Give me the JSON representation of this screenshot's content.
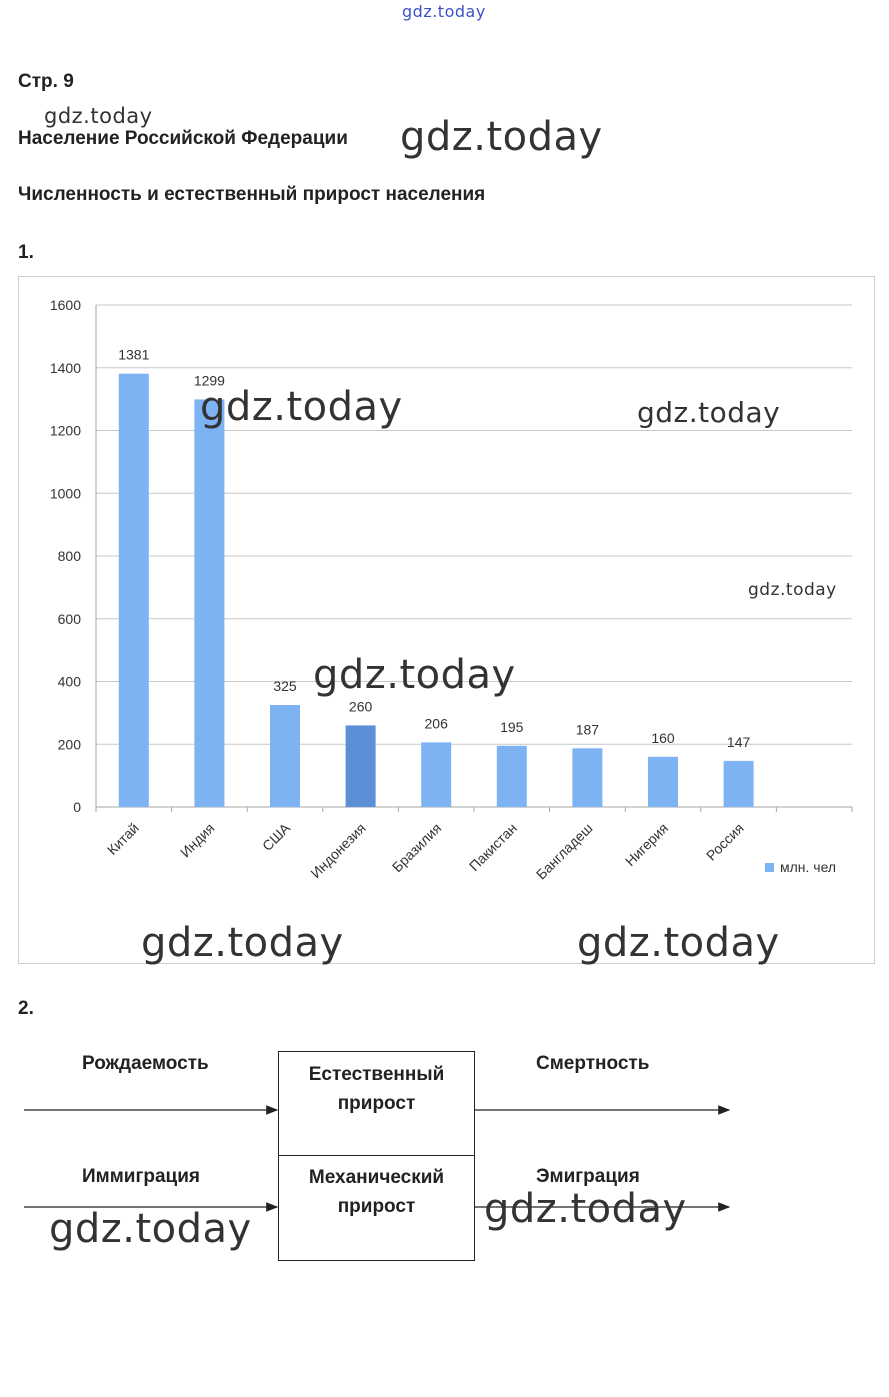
{
  "watermark_text": "gdz.today",
  "page_label": "Стр. 9",
  "section_title": "Население Российской Федерации",
  "subsection_title": "Численность и естественный прирост населения",
  "task1_number": "1.",
  "task2_number": "2.",
  "chart_data": {
    "type": "bar",
    "categories": [
      "Китай",
      "Индия",
      "США",
      "Индонезия",
      "Бразилия",
      "Пакистан",
      "Бангладеш",
      "Нигерия",
      "Россия"
    ],
    "series": [
      {
        "name": "млн. чел",
        "values": [
          1381,
          1299,
          325,
          260,
          206,
          195,
          187,
          160,
          147
        ]
      }
    ],
    "ylim": [
      0,
      1600
    ],
    "yticks": [
      0,
      200,
      400,
      600,
      800,
      1000,
      1200,
      1400,
      1600
    ],
    "grid": true,
    "legend_position": "right",
    "data_labels": true,
    "bar_color": "#7db3f2",
    "highlight_bar_color": "#5b8fd6",
    "xlabel": "",
    "ylabel": ""
  },
  "diagram": {
    "birth_rate": "Рождаемость",
    "death_rate": "Смертность",
    "immigration": "Иммиграция",
    "emigration": "Эмиграция",
    "natural_growth_line1": "Естественный",
    "natural_growth_line2": "прирост",
    "mechanical_growth_line1": "Механический",
    "mechanical_growth_line2": "прирост"
  }
}
